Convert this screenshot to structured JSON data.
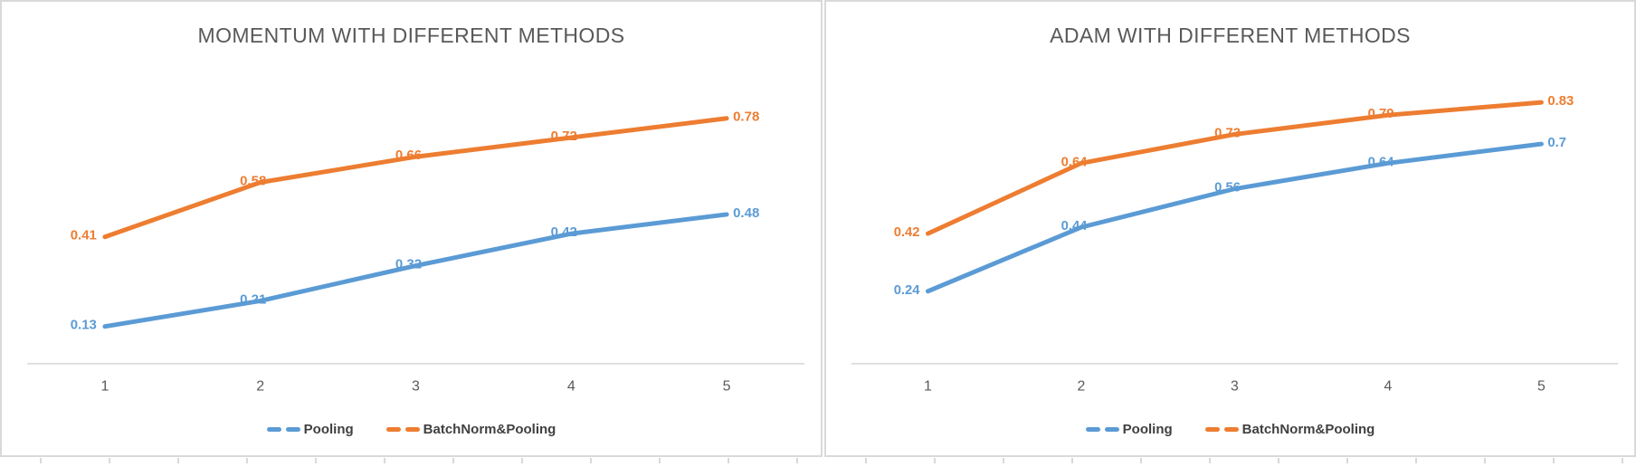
{
  "palette": {
    "blue": "#5B9BD5",
    "orange": "#ED7D31",
    "title_color": "#595959",
    "tick_label_color": "#595959",
    "legend_text_color": "#404040",
    "axis_line_color": "#d9d9d9",
    "panel_border_color": "#d9d9d9",
    "background": "#ffffff"
  },
  "chart_data": [
    {
      "type": "line",
      "title": "MOMENTUM WITH DIFFERENT METHODS",
      "categories": [
        "1",
        "2",
        "3",
        "4",
        "5"
      ],
      "series": [
        {
          "name": "Pooling",
          "color": "#5B9BD5",
          "values": [
            0.13,
            0.21,
            0.32,
            0.42,
            0.48
          ]
        },
        {
          "name": "BatchNorm&Pooling",
          "color": "#ED7D31",
          "values": [
            0.41,
            0.58,
            0.66,
            0.72,
            0.78
          ]
        }
      ],
      "ylim": [
        0,
        0.9
      ],
      "grid": false,
      "y_axis_visible": false,
      "data_labels": true,
      "legend_position": "bottom"
    },
    {
      "type": "line",
      "title": "ADAM WITH DIFFERENT METHODS",
      "categories": [
        "1",
        "2",
        "3",
        "4",
        "5"
      ],
      "series": [
        {
          "name": "Pooling",
          "color": "#5B9BD5",
          "values": [
            0.24,
            0.44,
            0.56,
            0.64,
            0.7
          ]
        },
        {
          "name": "BatchNorm&Pooling",
          "color": "#ED7D31",
          "values": [
            0.42,
            0.64,
            0.73,
            0.79,
            0.83
          ]
        }
      ],
      "ylim": [
        0,
        0.9
      ],
      "grid": false,
      "y_axis_visible": false,
      "data_labels": true,
      "legend_position": "bottom"
    }
  ]
}
